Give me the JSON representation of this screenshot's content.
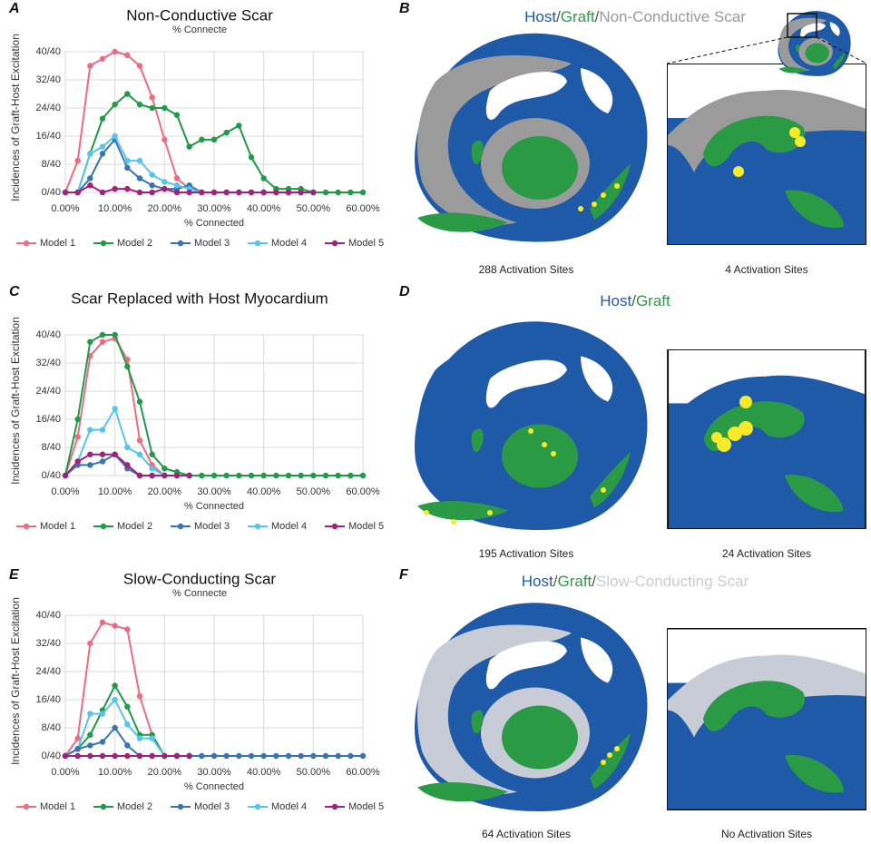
{
  "panel_letters": [
    "A",
    "B",
    "C",
    "D",
    "E",
    "F"
  ],
  "chart_data": [
    {
      "type": "line",
      "title": "Non-Conductive Scar",
      "subtitle": "% Connecte",
      "x_label": "% Connected",
      "y_label": "Incidences of Graft-Host Excitation",
      "x": [
        0,
        2.5,
        5,
        7.5,
        10,
        12.5,
        15,
        17.5,
        20,
        22.5,
        25,
        27.5,
        30,
        32.5,
        35,
        37.5,
        40,
        42.5,
        45,
        47.5,
        50,
        52.5,
        55,
        57.5,
        60
      ],
      "xlim": [
        0,
        60
      ],
      "ylim": [
        0,
        40
      ],
      "grid": true,
      "xticks": [
        {
          "value": 0,
          "label": "0.00%"
        },
        {
          "value": 10,
          "label": "10.00%"
        },
        {
          "value": 20,
          "label": "20.00%"
        },
        {
          "value": 30,
          "label": "30.00%"
        },
        {
          "value": 40,
          "label": "40.00%"
        },
        {
          "value": 50,
          "label": "50.00%"
        },
        {
          "value": 60,
          "label": "60.00%"
        }
      ],
      "yticks": [
        {
          "value": 0,
          "label": "0/40"
        },
        {
          "value": 8,
          "label": "8/40"
        },
        {
          "value": 16,
          "label": "16/40"
        },
        {
          "value": 24,
          "label": "24/40"
        },
        {
          "value": 32,
          "label": "32/40"
        },
        {
          "value": 40,
          "label": "40/40"
        }
      ],
      "series": [
        {
          "name": "Model 1",
          "color": "#ee6b82",
          "values": [
            0,
            9,
            36,
            38,
            40,
            39,
            36,
            27,
            15,
            4,
            1,
            0,
            0,
            0,
            0,
            0,
            0,
            0,
            0,
            0,
            0,
            null,
            null,
            null,
            null
          ]
        },
        {
          "name": "Model 2",
          "color": "#1f9a47",
          "values": [
            0,
            0,
            11,
            21,
            25,
            28,
            25,
            24,
            24,
            22,
            13,
            15,
            15,
            17,
            19,
            10,
            4,
            1,
            1,
            1,
            0,
            0,
            0,
            0,
            0
          ]
        },
        {
          "name": "Model 3",
          "color": "#3874b2",
          "values": [
            0,
            0,
            4,
            11,
            15,
            7,
            4,
            2,
            1,
            1,
            2,
            0,
            0,
            0,
            0,
            0,
            0,
            0,
            0,
            0,
            0,
            null,
            null,
            null,
            null
          ]
        },
        {
          "name": "Model 4",
          "color": "#56c4ec",
          "values": [
            0,
            0,
            11,
            13,
            16,
            9,
            9,
            5,
            3,
            2,
            1,
            0,
            0,
            0,
            0,
            0,
            0,
            0,
            0,
            0,
            0,
            null,
            null,
            null,
            null
          ]
        },
        {
          "name": "Model 5",
          "color": "#a3207b",
          "values": [
            0,
            0,
            2,
            0,
            1,
            1,
            0,
            0,
            1,
            0,
            0,
            0,
            0,
            0,
            0,
            0,
            0,
            0,
            0,
            0,
            0,
            null,
            null,
            null,
            null
          ]
        }
      ]
    },
    {
      "type": "line",
      "title": "Scar Replaced with Host Myocardium",
      "x_label": "% Connected",
      "y_label": "Incidences of Graft-Host Excitation",
      "x": [
        0,
        2.5,
        5,
        7.5,
        10,
        12.5,
        15,
        17.5,
        20,
        22.5,
        25,
        27.5,
        30,
        32.5,
        35,
        37.5,
        40,
        42.5,
        45,
        47.5,
        50,
        52.5,
        55,
        57.5,
        60
      ],
      "xlim": [
        0,
        60
      ],
      "ylim": [
        0,
        40
      ],
      "grid": true,
      "xticks": [
        {
          "value": 0,
          "label": "0.00%"
        },
        {
          "value": 10,
          "label": "10.00%"
        },
        {
          "value": 20,
          "label": "20.00%"
        },
        {
          "value": 30,
          "label": "30.00%"
        },
        {
          "value": 40,
          "label": "40.00%"
        },
        {
          "value": 50,
          "label": "50.00%"
        },
        {
          "value": 60,
          "label": "60.00%"
        }
      ],
      "yticks": [
        {
          "value": 0,
          "label": "0/40"
        },
        {
          "value": 8,
          "label": "8/40"
        },
        {
          "value": 16,
          "label": "16/40"
        },
        {
          "value": 24,
          "label": "24/40"
        },
        {
          "value": 32,
          "label": "32/40"
        },
        {
          "value": 40,
          "label": "40/40"
        }
      ],
      "series": [
        {
          "name": "Model 1",
          "color": "#ee6b82",
          "values": [
            0,
            11,
            34,
            38,
            39,
            33,
            10,
            3,
            0,
            0,
            0,
            null,
            null,
            null,
            null,
            null,
            null,
            null,
            null,
            null,
            null,
            null,
            null,
            null,
            null
          ]
        },
        {
          "name": "Model 2",
          "color": "#1f9a47",
          "values": [
            0,
            16,
            38,
            40,
            40,
            31,
            21,
            6,
            2,
            1,
            0,
            0,
            0,
            0,
            0,
            0,
            0,
            0,
            0,
            0,
            0,
            0,
            0,
            0,
            0
          ]
        },
        {
          "name": "Model 3",
          "color": "#3874b2",
          "values": [
            0,
            3,
            3,
            4,
            6,
            2,
            0,
            0,
            0,
            0,
            0,
            null,
            null,
            null,
            null,
            null,
            null,
            null,
            null,
            null,
            null,
            null,
            null,
            null,
            null
          ]
        },
        {
          "name": "Model 4",
          "color": "#56c4ec",
          "values": [
            0,
            4,
            13,
            13,
            19,
            8,
            6,
            2,
            0,
            0,
            0,
            null,
            null,
            null,
            null,
            null,
            null,
            null,
            null,
            null,
            null,
            null,
            null,
            null,
            null
          ]
        },
        {
          "name": "Model 5",
          "color": "#a3207b",
          "values": [
            0,
            4,
            6,
            6,
            6,
            3,
            0,
            0,
            0,
            0,
            0,
            null,
            null,
            null,
            null,
            null,
            null,
            null,
            null,
            null,
            null,
            null,
            null,
            null,
            null
          ]
        }
      ]
    },
    {
      "type": "line",
      "title": "Slow-Conducting Scar",
      "subtitle": "% Connecte",
      "x_label": "% Connected",
      "y_label": "Incidences of Graft-Host Excitation",
      "x": [
        0,
        2.5,
        5,
        7.5,
        10,
        12.5,
        15,
        17.5,
        20,
        22.5,
        25,
        27.5,
        30,
        32.5,
        35,
        37.5,
        40,
        42.5,
        45,
        47.5,
        50,
        52.5,
        55,
        57.5,
        60
      ],
      "xlim": [
        0,
        60
      ],
      "ylim": [
        0,
        40
      ],
      "grid": true,
      "xticks": [
        {
          "value": 0,
          "label": "0.00%"
        },
        {
          "value": 10,
          "label": "10.00%"
        },
        {
          "value": 20,
          "label": "20.00%"
        },
        {
          "value": 30,
          "label": "30.00%"
        },
        {
          "value": 40,
          "label": "40.00%"
        },
        {
          "value": 50,
          "label": "50.00%"
        },
        {
          "value": 60,
          "label": "60.00%"
        }
      ],
      "yticks": [
        {
          "value": 0,
          "label": "0/40"
        },
        {
          "value": 8,
          "label": "8/40"
        },
        {
          "value": 16,
          "label": "16/40"
        },
        {
          "value": 24,
          "label": "24/40"
        },
        {
          "value": 32,
          "label": "32/40"
        },
        {
          "value": 40,
          "label": "40/40"
        }
      ],
      "series": [
        {
          "name": "Model 1",
          "color": "#ee6b82",
          "values": [
            0,
            5,
            32,
            38,
            37,
            36,
            17,
            6,
            0,
            0,
            0,
            null,
            null,
            null,
            null,
            null,
            null,
            null,
            null,
            null,
            null,
            null,
            null,
            null,
            null
          ]
        },
        {
          "name": "Model 2",
          "color": "#1f9a47",
          "values": [
            0,
            2,
            6,
            13,
            20,
            14,
            6,
            6,
            0,
            0,
            0,
            null,
            null,
            null,
            null,
            null,
            null,
            null,
            null,
            null,
            null,
            null,
            null,
            null,
            null
          ]
        },
        {
          "name": "Model 4",
          "color": "#56c4ec",
          "values": [
            0,
            2,
            12,
            12,
            16,
            9,
            5,
            5,
            0,
            0,
            0,
            null,
            null,
            null,
            null,
            null,
            null,
            null,
            null,
            null,
            null,
            null,
            null,
            null,
            null
          ]
        },
        {
          "name": "Model 3",
          "color": "#3874b2",
          "values": [
            0,
            2,
            3,
            4,
            8,
            3,
            0,
            0,
            0,
            0,
            0,
            0,
            0,
            0,
            0,
            0,
            0,
            0,
            0,
            0,
            0,
            0,
            0,
            0,
            0
          ]
        },
        {
          "name": "Model 5",
          "color": "#a3207b",
          "values": [
            0,
            0,
            0,
            0,
            0,
            0,
            0,
            0,
            0,
            0,
            0,
            null,
            null,
            null,
            null,
            null,
            null,
            null,
            null,
            null,
            null,
            null,
            null,
            null,
            null
          ]
        }
      ]
    }
  ],
  "panels": [
    {
      "legend": [
        {
          "text": "Host",
          "color": "#1f5aa8"
        },
        {
          "text": "/",
          "color": "#555555"
        },
        {
          "text": "Graft",
          "color": "#2a9a45"
        },
        {
          "text": "/",
          "color": "#555555"
        },
        {
          "text": "Non-Conductive Scar",
          "color": "#999999"
        }
      ],
      "captions": [
        "288 Activation Sites",
        "4 Activation Sites"
      ]
    },
    {
      "legend": [
        {
          "text": "Host",
          "color": "#1f5aa8"
        },
        {
          "text": "/",
          "color": "#555555"
        },
        {
          "text": "Graft",
          "color": "#2a9a45"
        }
      ],
      "captions": [
        "195 Activation Sites",
        "24 Activation Sites"
      ]
    },
    {
      "legend": [
        {
          "text": "Host",
          "color": "#1f5aa8"
        },
        {
          "text": "/",
          "color": "#555555"
        },
        {
          "text": "Graft",
          "color": "#2a9a45"
        },
        {
          "text": "/",
          "color": "#555555"
        },
        {
          "text": "Slow-Conducting Scar",
          "color": "#c8ccd6"
        }
      ],
      "captions": [
        "64 Activation Sites",
        "No Activation Sites"
      ]
    }
  ]
}
